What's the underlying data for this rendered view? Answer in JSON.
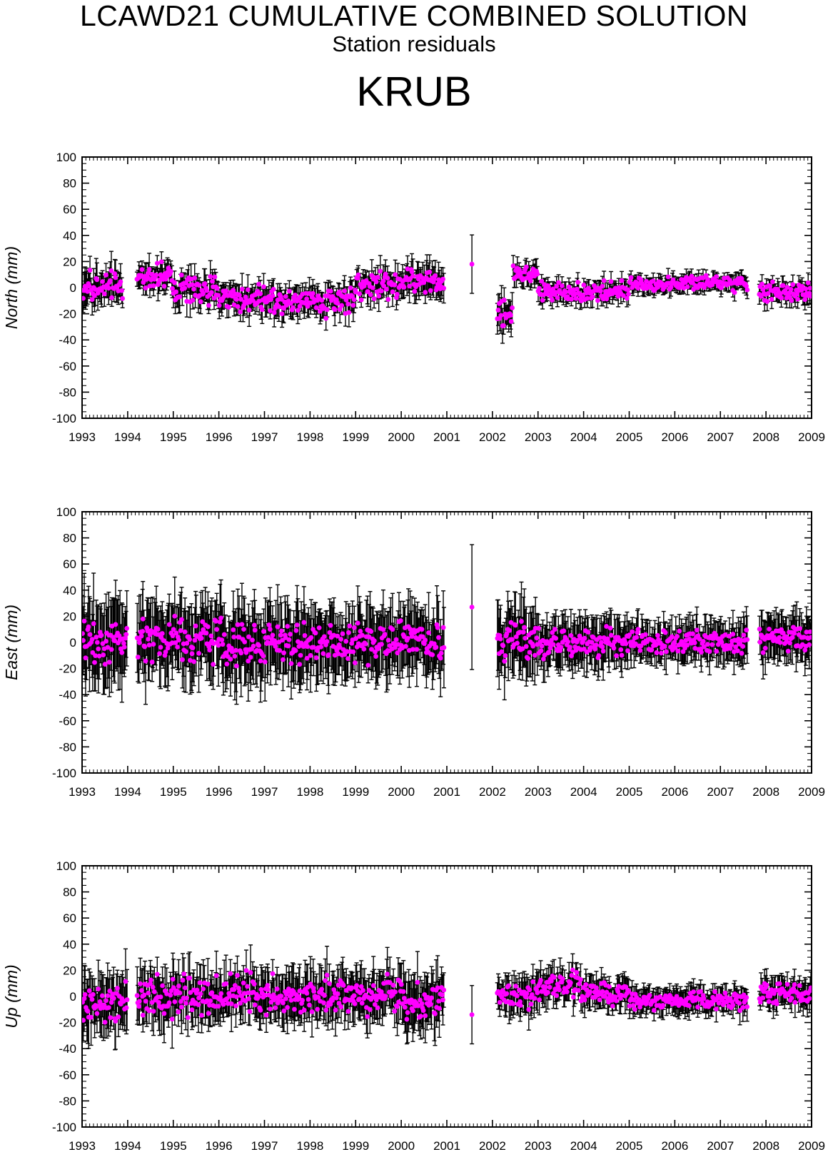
{
  "header": {
    "title": "LCAWD21 CUMULATIVE COMBINED SOLUTION",
    "subtitle": "Station residuals",
    "station": "KRUB"
  },
  "colors": {
    "marker": "#ff00ff",
    "errorbar": "#000000",
    "axis": "#000000"
  },
  "chart_data": [
    {
      "type": "scatter",
      "ylabel": "North (mm)",
      "ylim": [
        -100,
        100
      ],
      "xlim": [
        1993,
        2009
      ],
      "xticks": [
        "1993",
        "1994",
        "1995",
        "1996",
        "1997",
        "1998",
        "1999",
        "2000",
        "2001",
        "2002",
        "2003",
        "2004",
        "2005",
        "2006",
        "2007",
        "2008",
        "2009"
      ],
      "yticks": [
        "100",
        "80",
        "60",
        "40",
        "20",
        "0",
        "-20",
        "-40",
        "-60",
        "-80",
        "-100"
      ],
      "series": [
        {
          "error_bars": true,
          "segments": [
            {
              "start": 1993.0,
              "end": 1993.9,
              "center": 0,
              "amp": 15,
              "err": 11
            },
            {
              "start": 1994.2,
              "end": 1995.0,
              "center": 8,
              "amp": 13,
              "err": 9
            },
            {
              "start": 1995.0,
              "end": 1996.0,
              "center": -2,
              "amp": 17,
              "err": 9
            },
            {
              "start": 1996.0,
              "end": 1997.0,
              "center": -8,
              "amp": 14,
              "err": 9
            },
            {
              "start": 1997.0,
              "end": 1998.0,
              "center": -9,
              "amp": 16,
              "err": 9
            },
            {
              "start": 1998.0,
              "end": 1999.0,
              "center": -10,
              "amp": 16,
              "err": 9
            },
            {
              "start": 1999.0,
              "end": 2000.0,
              "center": 2,
              "amp": 18,
              "err": 9
            },
            {
              "start": 2000.0,
              "end": 2000.95,
              "center": 5,
              "amp": 15,
              "err": 10
            },
            {
              "start": 2001.55,
              "end": 2001.56,
              "center": 18,
              "amp": 0,
              "err": 17
            },
            {
              "start": 2002.1,
              "end": 2002.45,
              "center": -20,
              "amp": 16,
              "err": 10
            },
            {
              "start": 2002.45,
              "end": 2003.0,
              "center": 10,
              "amp": 10,
              "err": 7
            },
            {
              "start": 2003.0,
              "end": 2005.0,
              "center": -3,
              "amp": 10,
              "err": 6
            },
            {
              "start": 2005.0,
              "end": 2007.6,
              "center": 3,
              "amp": 8,
              "err": 5
            },
            {
              "start": 2007.85,
              "end": 2009.0,
              "center": -3,
              "amp": 10,
              "err": 6
            }
          ]
        }
      ]
    },
    {
      "type": "scatter",
      "ylabel": "East (mm)",
      "ylim": [
        -100,
        100
      ],
      "xlim": [
        1993,
        2009
      ],
      "xticks": [
        "1993",
        "1994",
        "1995",
        "1996",
        "1997",
        "1998",
        "1999",
        "2000",
        "2001",
        "2002",
        "2003",
        "2004",
        "2005",
        "2006",
        "2007",
        "2008",
        "2009"
      ],
      "yticks": [
        "100",
        "80",
        "60",
        "40",
        "20",
        "0",
        "-20",
        "-40",
        "-60",
        "-80",
        "-100"
      ],
      "series": [
        {
          "error_bars": true,
          "segments": [
            {
              "start": 1993.0,
              "end": 1994.0,
              "center": 0,
              "amp": 24,
              "err": 28
            },
            {
              "start": 1994.2,
              "end": 1996.0,
              "center": 2,
              "amp": 24,
              "err": 24
            },
            {
              "start": 1996.0,
              "end": 1998.0,
              "center": 0,
              "amp": 24,
              "err": 24
            },
            {
              "start": 1998.0,
              "end": 2000.0,
              "center": 0,
              "amp": 22,
              "err": 22
            },
            {
              "start": 2000.0,
              "end": 2000.95,
              "center": 2,
              "amp": 20,
              "err": 22
            },
            {
              "start": 2001.55,
              "end": 2001.56,
              "center": 27,
              "amp": 0,
              "err": 43
            },
            {
              "start": 2002.1,
              "end": 2003.0,
              "center": 2,
              "amp": 20,
              "err": 22
            },
            {
              "start": 2003.0,
              "end": 2005.0,
              "center": 0,
              "amp": 16,
              "err": 16
            },
            {
              "start": 2005.0,
              "end": 2007.6,
              "center": 0,
              "amp": 13,
              "err": 13
            },
            {
              "start": 2007.85,
              "end": 2009.0,
              "center": 4,
              "amp": 14,
              "err": 15
            }
          ]
        }
      ]
    },
    {
      "type": "scatter",
      "ylabel": "Up (mm)",
      "ylim": [
        -100,
        100
      ],
      "xlim": [
        1993,
        2009
      ],
      "xticks": [
        "1993",
        "1994",
        "1995",
        "1996",
        "1997",
        "1998",
        "1999",
        "2000",
        "2001",
        "2002",
        "2003",
        "2004",
        "2005",
        "2006",
        "2007",
        "2008",
        "2009"
      ],
      "yticks": [
        "100",
        "80",
        "60",
        "40",
        "20",
        "0",
        "-20",
        "-40",
        "-60",
        "-80",
        "-100"
      ],
      "series": [
        {
          "error_bars": true,
          "segments": [
            {
              "start": 1993.0,
              "end": 1994.0,
              "center": -5,
              "amp": 20,
              "err": 18
            },
            {
              "start": 1994.2,
              "end": 1996.0,
              "center": 0,
              "amp": 22,
              "err": 16
            },
            {
              "start": 1996.0,
              "end": 1998.0,
              "center": 2,
              "amp": 22,
              "err": 16
            },
            {
              "start": 1998.0,
              "end": 2000.0,
              "center": 2,
              "amp": 20,
              "err": 16
            },
            {
              "start": 2000.0,
              "end": 2000.95,
              "center": -5,
              "amp": 20,
              "err": 18
            },
            {
              "start": 2001.55,
              "end": 2001.56,
              "center": -14,
              "amp": 0,
              "err": 26
            },
            {
              "start": 2002.1,
              "end": 2003.0,
              "center": 0,
              "amp": 14,
              "err": 12
            },
            {
              "start": 2003.0,
              "end": 2004.0,
              "center": 8,
              "amp": 14,
              "err": 11
            },
            {
              "start": 2004.0,
              "end": 2005.0,
              "center": 2,
              "amp": 12,
              "err": 10
            },
            {
              "start": 2005.0,
              "end": 2007.6,
              "center": -3,
              "amp": 10,
              "err": 8
            },
            {
              "start": 2007.85,
              "end": 2009.0,
              "center": 2,
              "amp": 12,
              "err": 9
            }
          ]
        }
      ]
    }
  ]
}
